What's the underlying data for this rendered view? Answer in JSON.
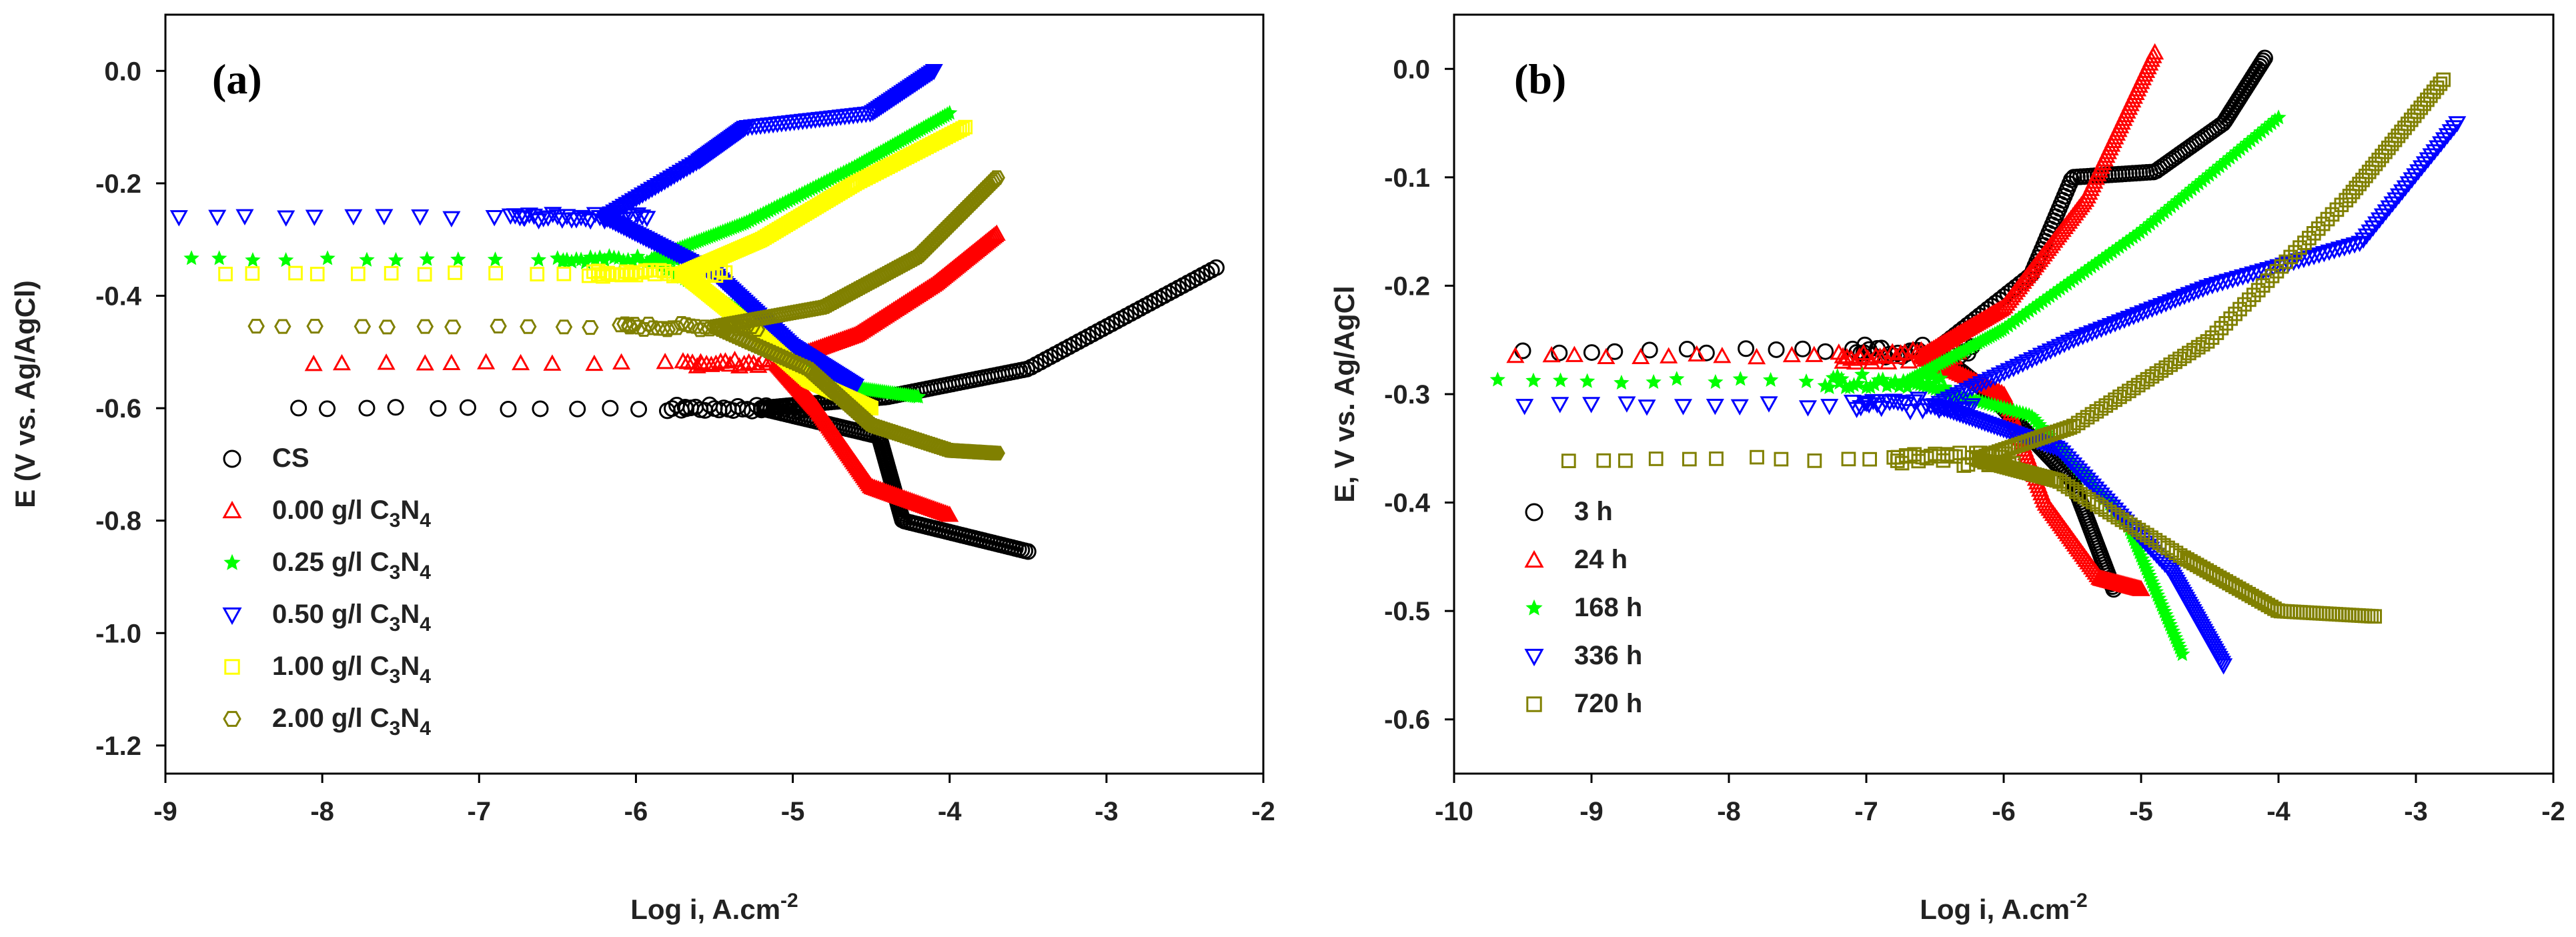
{
  "chart_data": [
    {
      "type": "scatter",
      "panel_label": "(a)",
      "xlabel": "Log i, A.cm",
      "xlabel_sup": "-2",
      "ylabel": "E (V vs. Ag/AgCl)",
      "xlim": [
        -9,
        -2
      ],
      "ylim": [
        -1.25,
        0.1
      ],
      "xticks": [
        -9,
        -8,
        -7,
        -6,
        -5,
        -4,
        -3,
        -2
      ],
      "yticks": [
        0.0,
        -0.2,
        -0.4,
        -0.6,
        -0.8,
        -1.0,
        -1.2
      ],
      "xtick_labels": [
        "-9",
        "-8",
        "-7",
        "-6",
        "-5",
        "-4",
        "-3",
        "-2"
      ],
      "ytick_labels": [
        "0.0",
        "-0.2",
        "-0.4",
        "-0.6",
        "-0.8",
        "-1.0",
        "-1.2"
      ],
      "legend_position": "lower-left",
      "series": [
        {
          "name": "CS",
          "sub": "",
          "color": "#000000",
          "marker": "circle",
          "ecorr": -0.6,
          "icorr": -5.2,
          "anodic": [
            [
              -4.4,
              -0.58
            ],
            [
              -3.5,
              -0.53
            ],
            [
              -2.3,
              -0.35
            ]
          ],
          "cathodic": [
            [
              -4.45,
              -0.65
            ],
            [
              -4.3,
              -0.8
            ],
            [
              -3.5,
              -0.855
            ]
          ]
        },
        {
          "name": "0.00 g/l C",
          "sub": "3",
          "name2": "N",
          "sub2": "4",
          "color": "#ff0000",
          "marker": "triangle",
          "ecorr": -0.52,
          "icorr": -5.1,
          "anodic": [
            [
              -4.6,
              -0.47
            ],
            [
              -4.1,
              -0.38
            ],
            [
              -3.7,
              -0.29
            ]
          ],
          "cathodic": [
            [
              -4.85,
              -0.6
            ],
            [
              -4.5,
              -0.74
            ],
            [
              -4.0,
              -0.79
            ]
          ]
        },
        {
          "name": "0.25 g/l C",
          "sub": "3",
          "name2": "N",
          "sub2": "4",
          "color": "#00ff00",
          "marker": "star",
          "ecorr": -0.335,
          "icorr": -5.9,
          "anodic": [
            [
              -5.3,
              -0.27
            ],
            [
              -4.6,
              -0.17
            ],
            [
              -4.0,
              -0.075
            ]
          ],
          "cathodic": [
            [
              -5.2,
              -0.45
            ],
            [
              -4.7,
              -0.56
            ],
            [
              -4.2,
              -0.58
            ]
          ]
        },
        {
          "name": "0.50 g/l C",
          "sub": "3",
          "name2": "N",
          "sub2": "4",
          "color": "#0000ff",
          "marker": "triangle-down",
          "ecorr": -0.26,
          "icorr": -6.2,
          "anodic": [
            [
              -5.6,
              -0.16
            ],
            [
              -5.3,
              -0.1
            ],
            [
              -4.5,
              -0.075
            ],
            [
              -4.1,
              0.0
            ]
          ],
          "cathodic": [
            [
              -5.5,
              -0.36
            ],
            [
              -5.0,
              -0.49
            ],
            [
              -4.6,
              -0.56
            ]
          ]
        },
        {
          "name": "1.00 g/l C",
          "sub": "3",
          "name2": "N",
          "sub2": "4",
          "color": "#ffff00",
          "marker": "square",
          "ecorr": -0.36,
          "icorr": -5.7,
          "anodic": [
            [
              -5.2,
              -0.3
            ],
            [
              -4.6,
              -0.2
            ],
            [
              -3.9,
              -0.1
            ]
          ],
          "cathodic": [
            [
              -5.3,
              -0.45
            ],
            [
              -4.9,
              -0.55
            ],
            [
              -4.5,
              -0.6
            ]
          ]
        },
        {
          "name": "2.00 g/l C",
          "sub": "3",
          "name2": "N",
          "sub2": "4",
          "color": "#808000",
          "marker": "hexagon",
          "ecorr": -0.455,
          "icorr": -5.5,
          "anodic": [
            [
              -4.8,
              -0.42
            ],
            [
              -4.2,
              -0.33
            ],
            [
              -3.7,
              -0.19
            ]
          ],
          "cathodic": [
            [
              -4.9,
              -0.53
            ],
            [
              -4.5,
              -0.63
            ],
            [
              -4.0,
              -0.675
            ],
            [
              -3.7,
              -0.68
            ]
          ]
        }
      ]
    },
    {
      "type": "scatter",
      "panel_label": "(b)",
      "xlabel": "Log i, A.cm",
      "xlabel_sup": "-2",
      "ylabel": "E, V vs. Ag/AgCl",
      "xlim": [
        -10,
        -2
      ],
      "ylim": [
        -0.65,
        0.05
      ],
      "xticks": [
        -10,
        -9,
        -8,
        -7,
        -6,
        -5,
        -4,
        -3,
        -2
      ],
      "yticks": [
        0.0,
        -0.1,
        -0.2,
        -0.3,
        -0.4,
        -0.5,
        -0.6
      ],
      "xtick_labels": [
        "-10",
        "-9",
        "-8",
        "-7",
        "-6",
        "-5",
        "-4",
        "-3",
        "-2"
      ],
      "ytick_labels": [
        "0.0",
        "-0.1",
        "-0.2",
        "-0.3",
        "-0.4",
        "-0.5",
        "-0.6"
      ],
      "legend_position": "lower-left",
      "series": [
        {
          "name": "3 h",
          "color": "#000000",
          "marker": "circle",
          "ecorr": -0.26,
          "icorr": -6.5,
          "anodic": [
            [
              -5.8,
              -0.19
            ],
            [
              -5.5,
              -0.1
            ],
            [
              -4.9,
              -0.095
            ],
            [
              -4.4,
              -0.05
            ],
            [
              -4.1,
              0.01
            ]
          ],
          "cathodic": [
            [
              -6.1,
              -0.3
            ],
            [
              -5.5,
              -0.38
            ],
            [
              -5.2,
              -0.48
            ]
          ]
        },
        {
          "name": "24 h",
          "color": "#ff0000",
          "marker": "triangle",
          "ecorr": -0.265,
          "icorr": -6.6,
          "anodic": [
            [
              -6.0,
              -0.22
            ],
            [
              -5.4,
              -0.12
            ],
            [
              -4.9,
              0.015
            ]
          ],
          "cathodic": [
            [
              -6.0,
              -0.3
            ],
            [
              -5.7,
              -0.4
            ],
            [
              -5.3,
              -0.47
            ],
            [
              -5.0,
              -0.48
            ]
          ]
        },
        {
          "name": "168 h",
          "color": "#00ff00",
          "marker": "star",
          "ecorr": -0.288,
          "icorr": -6.7,
          "anodic": [
            [
              -6.0,
              -0.24
            ],
            [
              -5.0,
              -0.15
            ],
            [
              -4.0,
              -0.045
            ]
          ],
          "cathodic": [
            [
              -5.8,
              -0.32
            ],
            [
              -5.1,
              -0.42
            ],
            [
              -4.7,
              -0.54
            ]
          ]
        },
        {
          "name": "336 h",
          "color": "#0000ff",
          "marker": "triangle-down",
          "ecorr": -0.31,
          "icorr": -6.5,
          "anodic": [
            [
              -5.5,
              -0.25
            ],
            [
              -4.5,
              -0.2
            ],
            [
              -3.4,
              -0.16
            ],
            [
              -2.7,
              -0.05
            ]
          ],
          "cathodic": [
            [
              -5.6,
              -0.35
            ],
            [
              -4.8,
              -0.46
            ],
            [
              -4.4,
              -0.55
            ]
          ]
        },
        {
          "name": "720 h",
          "color": "#808000",
          "marker": "square",
          "ecorr": -0.36,
          "icorr": -6.2,
          "anodic": [
            [
              -5.5,
              -0.33
            ],
            [
              -4.5,
              -0.25
            ],
            [
              -3.5,
              -0.12
            ],
            [
              -2.8,
              -0.01
            ]
          ],
          "cathodic": [
            [
              -5.6,
              -0.38
            ],
            [
              -4.7,
              -0.45
            ],
            [
              -4.0,
              -0.5
            ],
            [
              -3.3,
              -0.505
            ]
          ]
        }
      ]
    }
  ]
}
